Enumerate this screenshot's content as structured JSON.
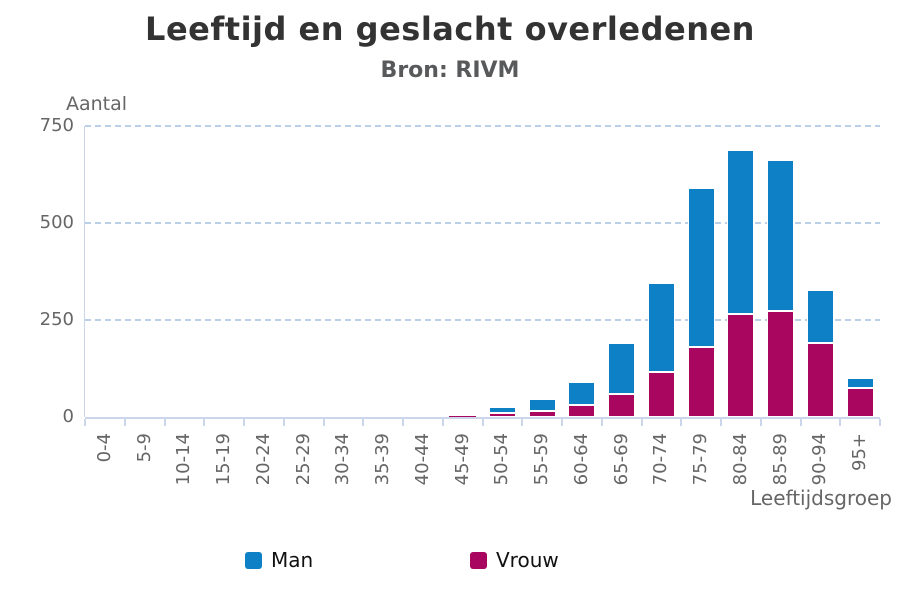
{
  "title": "Leeftijd en geslacht overledenen",
  "subtitle": "Bron: RIVM",
  "chart_data": {
    "type": "bar",
    "stacked": true,
    "title": "Leeftijd en geslacht overledenen",
    "subtitle": "Bron: RIVM",
    "xlabel": "Leeftijdsgroep",
    "ylabel": "Aantal",
    "categories": [
      "0-4",
      "5-9",
      "10-14",
      "15-19",
      "20-24",
      "25-29",
      "30-34",
      "35-39",
      "40-44",
      "45-49",
      "50-54",
      "55-59",
      "60-64",
      "65-69",
      "70-74",
      "75-79",
      "80-84",
      "85-89",
      "90-94",
      "95+"
    ],
    "series": [
      {
        "name": "Man",
        "color": "#0e80c6",
        "values": [
          0,
          0,
          0,
          0,
          0,
          0,
          0,
          0,
          0,
          6,
          17,
          31,
          60,
          130,
          228,
          410,
          423,
          390,
          136,
          25
        ]
      },
      {
        "name": "Vrouw",
        "color": "#a8065f",
        "values": [
          0,
          0,
          0,
          0,
          0,
          0,
          0,
          0,
          0,
          2,
          10,
          15,
          30,
          60,
          117,
          180,
          265,
          272,
          192,
          75
        ]
      }
    ],
    "stack_order_bottom_to_top": [
      "Vrouw",
      "Man"
    ],
    "ylim": [
      0,
      750
    ],
    "yticks": [
      0,
      250,
      500,
      750
    ],
    "grid": "horizontal-dashed",
    "legend_position": "bottom",
    "colors": {
      "axis": "#ccd6eb",
      "grid": "#bccfe8",
      "tick_label": "#666666",
      "title": "#333333",
      "subtitle": "#58595b",
      "legend_text": "#111111"
    }
  }
}
